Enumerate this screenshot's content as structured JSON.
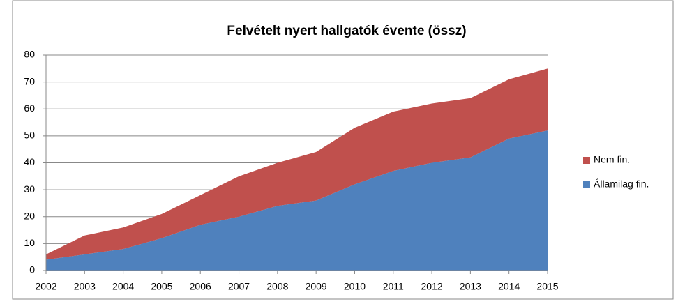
{
  "chart_data": {
    "type": "stacked-area",
    "title": "Felvételt nyert hallgatók évente (össz)",
    "categories": [
      "2002",
      "2003",
      "2004",
      "2005",
      "2006",
      "2007",
      "2008",
      "2009",
      "2010",
      "2011",
      "2012",
      "2013",
      "2014",
      "2015"
    ],
    "series": [
      {
        "name": "Államilag fin.",
        "color": "#4f81bd",
        "values": [
          4,
          6,
          8,
          12,
          17,
          20,
          24,
          26,
          32,
          37,
          40,
          42,
          49,
          52
        ]
      },
      {
        "name": "Nem fin.",
        "color": "#c0504d",
        "values": [
          2,
          7,
          8,
          9,
          11,
          15,
          16,
          18,
          21,
          22,
          22,
          22,
          22,
          23
        ]
      }
    ],
    "ylim": [
      0,
      80
    ],
    "yticks": [
      0,
      10,
      20,
      30,
      40,
      50,
      60,
      70,
      80
    ],
    "grid": true,
    "legend": "right"
  }
}
